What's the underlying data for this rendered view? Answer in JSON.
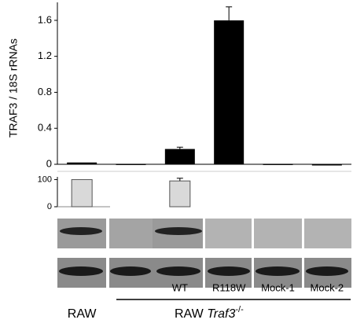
{
  "chart_data": [
    {
      "type": "bar",
      "y_label": "TRAF3 / 18S rRNAs",
      "categories": [
        "RAW",
        null,
        "WT",
        "R118W",
        "Mock-1",
        "Mock-2"
      ],
      "values": [
        0.02,
        0.005,
        0.17,
        1.6,
        0.005,
        0
      ],
      "errors": [
        null,
        null,
        0.02,
        0.15,
        null,
        null
      ],
      "color": "#000000",
      "ylim": [
        0,
        1.8
      ],
      "yticks": [
        0,
        0.4,
        0.8,
        1.2,
        1.6
      ],
      "group": {
        "label": "RAW",
        "gene": "Traf3",
        "genotype": "-/-"
      }
    },
    {
      "type": "bar",
      "values": [
        100,
        null,
        95,
        null,
        null,
        null
      ],
      "errors": [
        null,
        null,
        10,
        null,
        null,
        null
      ],
      "color": "#d9d9d9",
      "ylim": [
        0,
        110
      ],
      "yticks": [
        0,
        100
      ]
    }
  ]
}
